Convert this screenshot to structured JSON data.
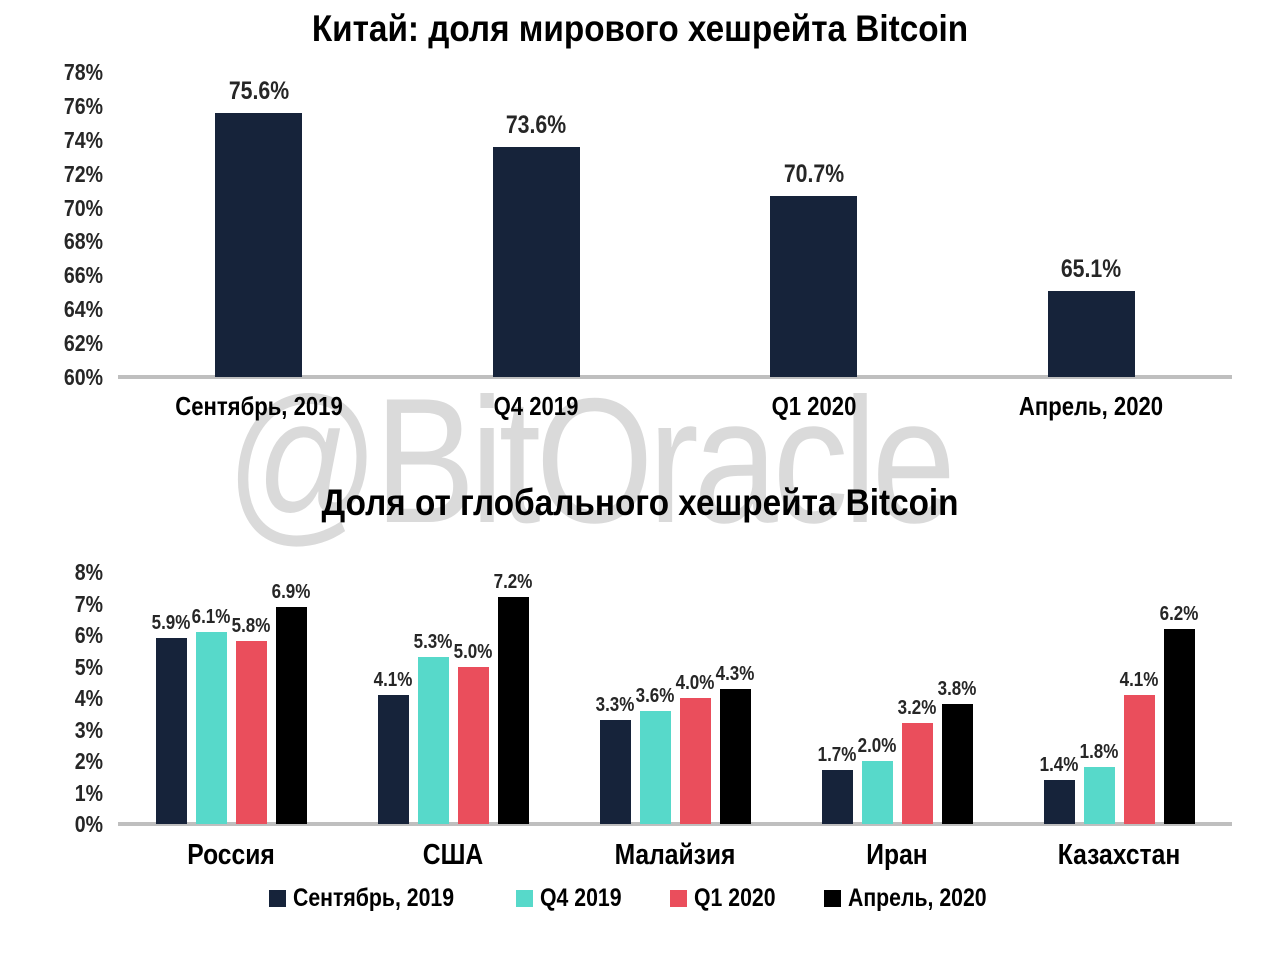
{
  "watermark": {
    "text": "@BitOracle",
    "color": "#dadada"
  },
  "colors": {
    "navy": "#16233a",
    "teal": "#57d9ca",
    "red": "#ea4e5c",
    "black": "#000000",
    "axis": "#bfbfbf"
  },
  "chart_data": [
    {
      "type": "bar",
      "title": "Китай: доля мирового хешрейта Bitcoin",
      "categories": [
        "Сентябрь, 2019",
        "Q4 2019",
        "Q1 2020",
        "Апрель, 2020"
      ],
      "values": [
        75.6,
        73.6,
        70.7,
        65.1
      ],
      "data_labels": [
        "75.6%",
        "73.6%",
        "70.7%",
        "65.1%"
      ],
      "bar_color": "#16233a",
      "xlabel": "",
      "ylabel": "",
      "ylim": [
        60,
        78
      ],
      "yticks": [
        "78%",
        "76%",
        "74%",
        "72%",
        "70%",
        "68%",
        "66%",
        "64%",
        "62%",
        "60%"
      ],
      "grid": false,
      "legend_position": "none"
    },
    {
      "type": "bar",
      "title": "Доля от глобального хешрейта Bitcoin",
      "categories": [
        "Россия",
        "США",
        "Малайзия",
        "Иран",
        "Казахстан"
      ],
      "series": [
        {
          "name": "Сентябрь, 2019",
          "color": "#16233a",
          "values": [
            5.9,
            4.1,
            3.3,
            1.7,
            1.4
          ],
          "data_labels": [
            "5.9%",
            "4.1%",
            "3.3%",
            "1.7%",
            "1.4%"
          ]
        },
        {
          "name": "Q4 2019",
          "color": "#57d9ca",
          "values": [
            6.1,
            5.3,
            3.6,
            2.0,
            1.8
          ],
          "data_labels": [
            "6.1%",
            "5.3%",
            "3.6%",
            "2.0%",
            "1.8%"
          ]
        },
        {
          "name": "Q1 2020",
          "color": "#ea4e5c",
          "values": [
            5.8,
            5.0,
            4.0,
            3.2,
            4.1
          ],
          "data_labels": [
            "5.8%",
            "5.0%",
            "4.0%",
            "3.2%",
            "4.1%"
          ]
        },
        {
          "name": "Апрель, 2020",
          "color": "#000000",
          "values": [
            6.9,
            7.2,
            4.3,
            3.8,
            6.2
          ],
          "data_labels": [
            "6.9%",
            "7.2%",
            "4.3%",
            "3.8%",
            "6.2%"
          ]
        }
      ],
      "xlabel": "",
      "ylabel": "",
      "ylim": [
        0,
        8
      ],
      "yticks": [
        "8%",
        "7%",
        "6%",
        "5%",
        "4%",
        "3%",
        "2%",
        "1%",
        "0%"
      ],
      "grid": false,
      "legend_position": "bottom"
    }
  ]
}
